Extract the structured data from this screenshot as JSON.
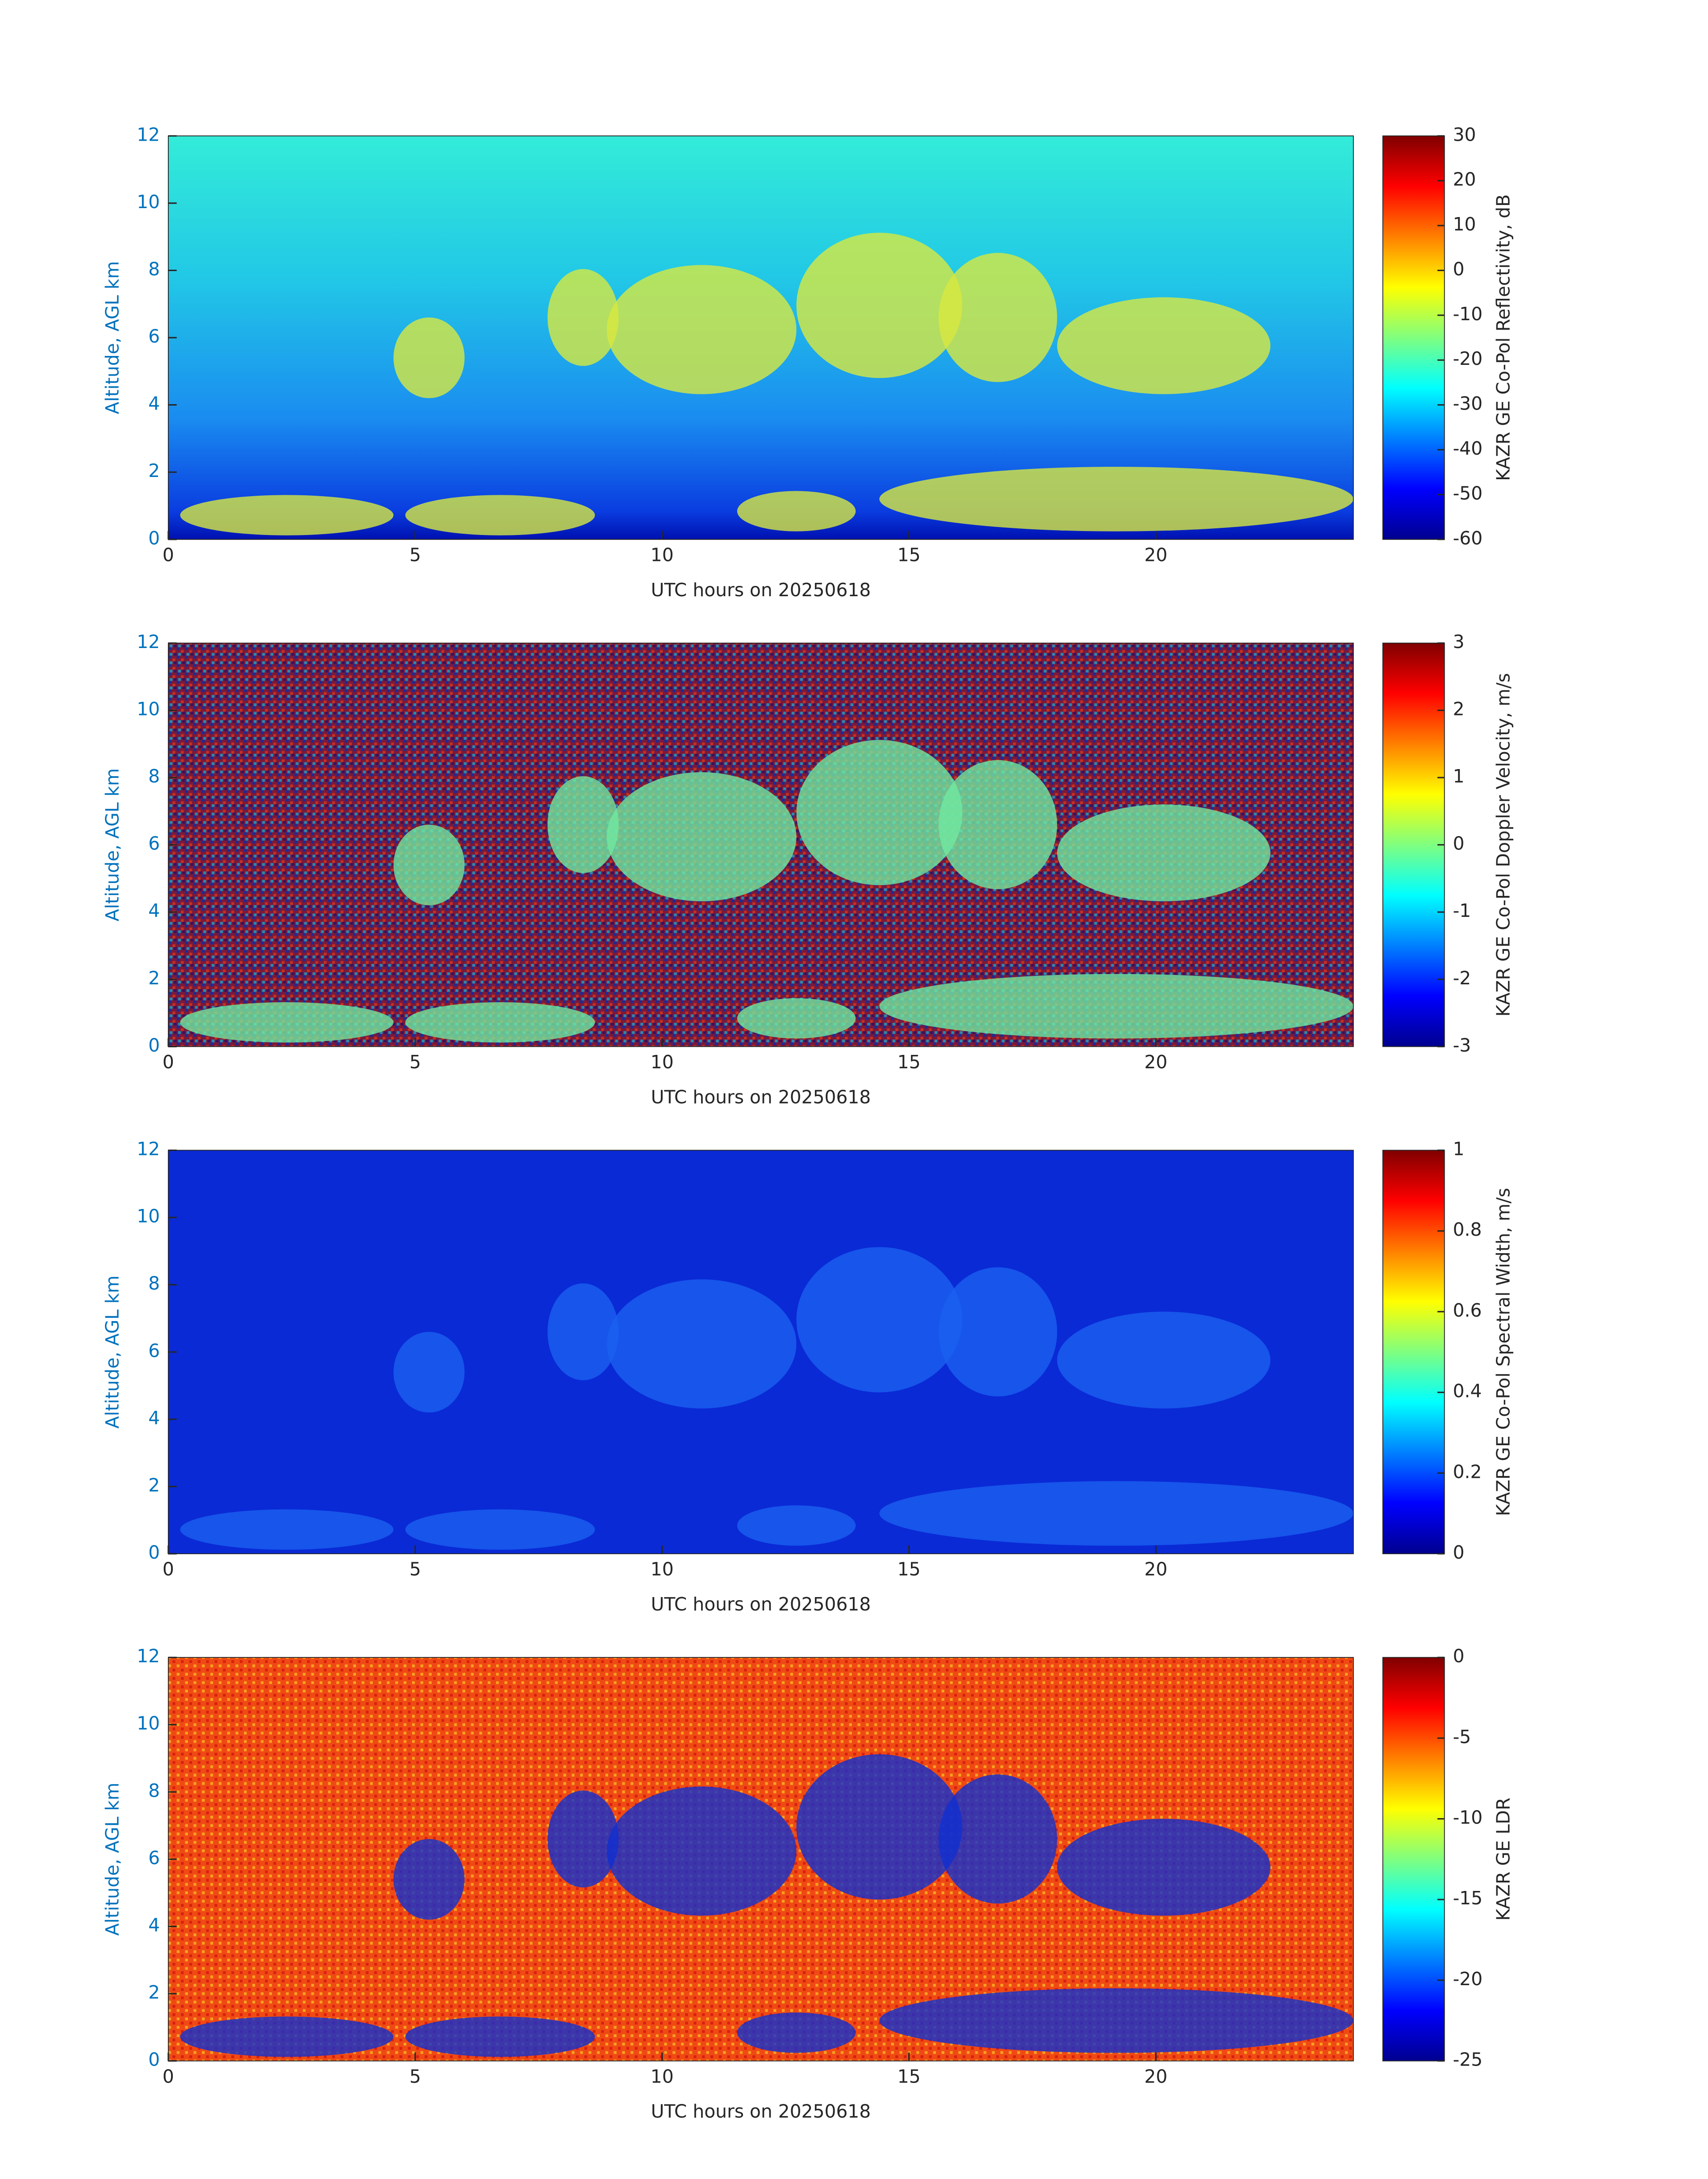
{
  "chart_data": [
    {
      "type": "heatmap",
      "xlabel": "UTC hours on 20250618",
      "ylabel": "Altitude, AGL km",
      "xlim": [
        0,
        24
      ],
      "xticks": [
        0,
        5,
        10,
        15,
        20
      ],
      "ylim": [
        0,
        12
      ],
      "yticks": [
        0,
        2,
        4,
        6,
        8,
        10,
        12
      ],
      "colorbar": {
        "label": "KAZR GE Co-Pol Reflectivity, dB",
        "clim": [
          -60,
          30
        ],
        "ticks": [
          -60,
          -50,
          -40,
          -30,
          -20,
          -10,
          0,
          10,
          20,
          30
        ],
        "colormap": "jet"
      }
    },
    {
      "type": "heatmap",
      "xlabel": "UTC hours on 20250618",
      "ylabel": "Altitude, AGL km",
      "xlim": [
        0,
        24
      ],
      "xticks": [
        0,
        5,
        10,
        15,
        20
      ],
      "ylim": [
        0,
        12
      ],
      "yticks": [
        0,
        2,
        4,
        6,
        8,
        10,
        12
      ],
      "colorbar": {
        "label": "KAZR GE Co-Pol Doppler Velocity, m/s",
        "clim": [
          -3,
          3
        ],
        "ticks": [
          -3,
          -2,
          -1,
          0,
          1,
          2,
          3
        ],
        "colormap": "jet"
      }
    },
    {
      "type": "heatmap",
      "xlabel": "UTC hours on 20250618",
      "ylabel": "Altitude, AGL km",
      "xlim": [
        0,
        24
      ],
      "xticks": [
        0,
        5,
        10,
        15,
        20
      ],
      "ylim": [
        0,
        12
      ],
      "yticks": [
        0,
        2,
        4,
        6,
        8,
        10,
        12
      ],
      "colorbar": {
        "label": "KAZR GE Co-Pol Spectral Width, m/s",
        "clim": [
          0,
          1
        ],
        "ticks": [
          0,
          0.2,
          0.4,
          0.6,
          0.8,
          1
        ],
        "colormap": "jet"
      }
    },
    {
      "type": "heatmap",
      "xlabel": "UTC hours on 20250618",
      "ylabel": "Altitude, AGL km",
      "xlim": [
        0,
        24
      ],
      "xticks": [
        0,
        5,
        10,
        15,
        20
      ],
      "ylim": [
        0,
        12
      ],
      "yticks": [
        0,
        2,
        4,
        6,
        8,
        10,
        12
      ],
      "colorbar": {
        "label": "KAZR GE LDR",
        "clim": [
          -25,
          0
        ],
        "ticks": [
          -25,
          -20,
          -15,
          -10,
          -5,
          0
        ],
        "colormap": "jet"
      }
    }
  ]
}
